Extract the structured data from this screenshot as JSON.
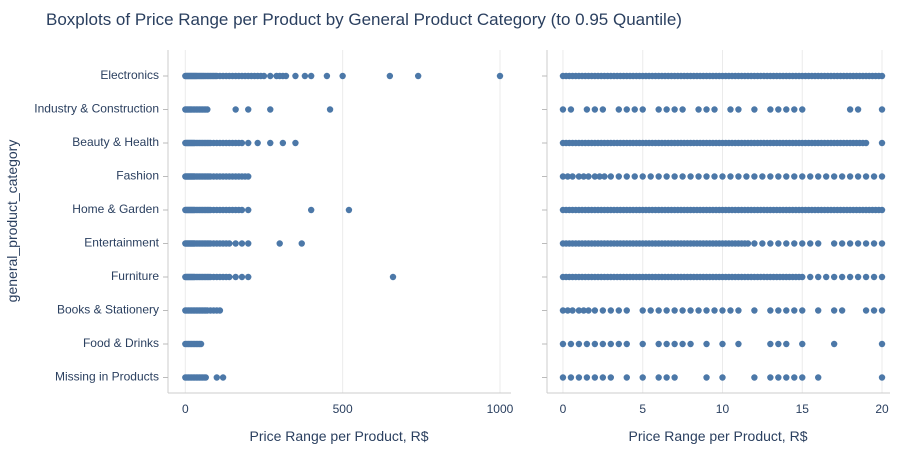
{
  "chart_data": {
    "type": "scatter",
    "title": "Boxplots of Price Range per Product by General Product Category (to 0.95 Quantile)",
    "ylabel": "general_product_category",
    "categories": [
      "Electronics",
      "Industry & Construction",
      "Beauty & Health",
      "Fashion",
      "Home & Garden",
      "Entertainment",
      "Furniture",
      "Books & Stationery",
      "Food & Drinks",
      "Missing in Products"
    ],
    "colors": {
      "marker": "#4c78a8",
      "text": "#2a3f5f",
      "grid": "#ebebeb"
    },
    "panels": [
      {
        "xlabel": "Price Range per Product, R$",
        "xlim": [
          -55,
          1035
        ],
        "xticks": [
          0,
          500,
          1000
        ],
        "series": [
          {
            "category": "Electronics",
            "x": [
              0,
              3,
              6,
              9,
              12,
              15,
              18,
              21,
              24,
              27,
              30,
              33,
              36,
              40,
              44,
              48,
              52,
              56,
              60,
              65,
              70,
              75,
              80,
              85,
              90,
              95,
              100,
              110,
              120,
              130,
              140,
              150,
              160,
              170,
              180,
              190,
              200,
              210,
              220,
              230,
              240,
              250,
              270,
              290,
              300,
              310,
              320,
              350,
              380,
              400,
              450,
              500,
              650,
              740,
              1000
            ]
          },
          {
            "category": "Industry & Construction",
            "x": [
              0,
              4,
              8,
              12,
              16,
              20,
              25,
              30,
              35,
              40,
              45,
              50,
              55,
              60,
              65,
              70,
              160,
              200,
              270,
              460
            ]
          },
          {
            "category": "Beauty & Health",
            "x": [
              0,
              3,
              6,
              9,
              12,
              15,
              18,
              21,
              24,
              27,
              30,
              35,
              40,
              45,
              50,
              55,
              60,
              65,
              70,
              75,
              80,
              90,
              100,
              110,
              120,
              130,
              140,
              150,
              160,
              170,
              180,
              200,
              230,
              270,
              310,
              350
            ]
          },
          {
            "category": "Fashion",
            "x": [
              0,
              3,
              6,
              9,
              12,
              15,
              18,
              21,
              24,
              27,
              30,
              35,
              40,
              45,
              50,
              55,
              60,
              65,
              70,
              75,
              80,
              90,
              100,
              110,
              120,
              130,
              140,
              150,
              160,
              170,
              180,
              190,
              200
            ]
          },
          {
            "category": "Home & Garden",
            "x": [
              0,
              3,
              6,
              9,
              12,
              15,
              18,
              21,
              24,
              27,
              30,
              35,
              40,
              45,
              50,
              55,
              60,
              65,
              70,
              75,
              80,
              90,
              100,
              110,
              120,
              130,
              140,
              150,
              160,
              170,
              180,
              200,
              400,
              520
            ]
          },
          {
            "category": "Entertainment",
            "x": [
              0,
              3,
              6,
              9,
              12,
              15,
              18,
              21,
              24,
              27,
              30,
              35,
              40,
              45,
              50,
              55,
              60,
              65,
              70,
              75,
              80,
              90,
              100,
              110,
              120,
              130,
              140,
              160,
              180,
              200,
              300,
              370
            ]
          },
          {
            "category": "Furniture",
            "x": [
              0,
              3,
              6,
              9,
              12,
              15,
              18,
              21,
              24,
              27,
              30,
              35,
              40,
              45,
              50,
              55,
              60,
              65,
              70,
              75,
              80,
              90,
              100,
              110,
              120,
              130,
              140,
              160,
              180,
              200,
              660
            ]
          },
          {
            "category": "Books & Stationery",
            "x": [
              0,
              5,
              10,
              15,
              20,
              25,
              30,
              35,
              40,
              45,
              50,
              55,
              60,
              65,
              70,
              80,
              90,
              100,
              110
            ]
          },
          {
            "category": "Food & Drinks",
            "x": [
              0,
              5,
              10,
              15,
              20,
              25,
              30,
              35,
              40,
              45,
              50
            ]
          },
          {
            "category": "Missing in Products",
            "x": [
              0,
              5,
              10,
              15,
              20,
              25,
              30,
              35,
              40,
              45,
              50,
              55,
              60,
              65,
              100,
              120
            ]
          }
        ]
      },
      {
        "xlabel": "Price Range per Product, R$",
        "xlim": [
          -1,
          20.5
        ],
        "xticks": [
          0,
          5,
          10,
          15,
          20
        ],
        "series": [
          {
            "category": "Electronics",
            "x": [
              0,
              0.2,
              0.4,
              0.6,
              0.8,
              1,
              1.2,
              1.4,
              1.6,
              1.8,
              2,
              2.2,
              2.4,
              2.6,
              2.8,
              3,
              3.2,
              3.4,
              3.6,
              3.8,
              4,
              4.2,
              4.4,
              4.6,
              4.8,
              5,
              5.2,
              5.4,
              5.6,
              5.8,
              6,
              6.2,
              6.4,
              6.6,
              6.8,
              7,
              7.2,
              7.4,
              7.6,
              7.8,
              8,
              8.2,
              8.4,
              8.6,
              8.8,
              9,
              9.2,
              9.4,
              9.6,
              9.8,
              10,
              10.2,
              10.4,
              10.6,
              10.8,
              11,
              11.2,
              11.4,
              11.6,
              11.8,
              12,
              12.2,
              12.4,
              12.6,
              12.8,
              13,
              13.2,
              13.4,
              13.6,
              13.8,
              14,
              14.2,
              14.4,
              14.6,
              14.8,
              15,
              15.2,
              15.4,
              15.6,
              15.8,
              16,
              16.2,
              16.4,
              16.6,
              16.8,
              17,
              17.2,
              17.4,
              17.6,
              17.8,
              18,
              18.2,
              18.4,
              18.6,
              18.8,
              19,
              19.2,
              19.4,
              19.6,
              19.8,
              20
            ]
          },
          {
            "category": "Industry & Construction",
            "x": [
              0,
              0.5,
              1.5,
              2,
              2.5,
              3.5,
              4,
              4.5,
              5,
              6,
              6.5,
              7,
              7.5,
              8.5,
              9,
              9.5,
              10.5,
              11,
              12,
              13,
              13.5,
              14,
              14.5,
              15,
              18,
              18.5,
              20
            ]
          },
          {
            "category": "Beauty & Health",
            "x": [
              0,
              0.2,
              0.4,
              0.6,
              0.8,
              1,
              1.2,
              1.4,
              1.6,
              1.8,
              2,
              2.2,
              2.4,
              2.6,
              2.8,
              3,
              3.2,
              3.4,
              3.6,
              3.8,
              4,
              4.2,
              4.4,
              4.6,
              4.8,
              5,
              5.2,
              5.4,
              5.6,
              5.8,
              6,
              6.2,
              6.4,
              6.6,
              6.8,
              7,
              7.2,
              7.4,
              7.6,
              7.8,
              8,
              8.2,
              8.4,
              8.6,
              8.8,
              9,
              9.2,
              9.4,
              9.6,
              9.8,
              10,
              10.2,
              10.4,
              10.6,
              10.8,
              11,
              11.2,
              11.4,
              11.6,
              11.8,
              12,
              12.2,
              12.4,
              12.6,
              12.8,
              13,
              13.2,
              13.4,
              13.6,
              13.8,
              14,
              14.2,
              14.4,
              14.6,
              14.8,
              15,
              15.2,
              15.4,
              15.6,
              15.8,
              16,
              16.2,
              16.4,
              16.6,
              16.8,
              17,
              17.2,
              17.4,
              17.6,
              17.8,
              18,
              18.2,
              18.4,
              18.6,
              18.8,
              19,
              20
            ]
          },
          {
            "category": "Fashion",
            "x": [
              0,
              0.3,
              0.6,
              1,
              1.3,
              1.6,
              2,
              2.3,
              2.6,
              3,
              3.5,
              4,
              4.5,
              5,
              5.5,
              6,
              6.5,
              7,
              7.5,
              8,
              8.5,
              9,
              9.5,
              10,
              10.5,
              11,
              11.5,
              12,
              12.5,
              13,
              13.5,
              14,
              14.5,
              15,
              15.5,
              16,
              16.5,
              17,
              17.5,
              18,
              18.5,
              19,
              19.5,
              20
            ]
          },
          {
            "category": "Home & Garden",
            "x": [
              0,
              0.2,
              0.4,
              0.6,
              0.8,
              1,
              1.2,
              1.4,
              1.6,
              1.8,
              2,
              2.2,
              2.4,
              2.6,
              2.8,
              3,
              3.2,
              3.4,
              3.6,
              3.8,
              4,
              4.2,
              4.4,
              4.6,
              4.8,
              5,
              5.2,
              5.4,
              5.6,
              5.8,
              6,
              6.2,
              6.4,
              6.6,
              6.8,
              7,
              7.2,
              7.4,
              7.6,
              7.8,
              8,
              8.2,
              8.4,
              8.6,
              8.8,
              9,
              9.2,
              9.4,
              9.6,
              9.8,
              10,
              10.2,
              10.4,
              10.6,
              10.8,
              11,
              11.2,
              11.4,
              11.6,
              11.8,
              12,
              12.2,
              12.4,
              12.6,
              12.8,
              13,
              13.2,
              13.4,
              13.6,
              13.8,
              14,
              14.2,
              14.4,
              14.6,
              14.8,
              15,
              15.2,
              15.4,
              15.6,
              15.8,
              16,
              16.2,
              16.4,
              16.6,
              16.8,
              17,
              17.2,
              17.4,
              17.6,
              17.8,
              18,
              18.2,
              18.4,
              18.6,
              18.8,
              19,
              19.2,
              19.4,
              19.6,
              19.8,
              20
            ]
          },
          {
            "category": "Entertainment",
            "x": [
              0,
              0.2,
              0.4,
              0.6,
              0.8,
              1,
              1.2,
              1.4,
              1.6,
              1.8,
              2,
              2.2,
              2.4,
              2.6,
              2.8,
              3,
              3.2,
              3.4,
              3.6,
              3.8,
              4,
              4.2,
              4.4,
              4.6,
              4.8,
              5,
              5.2,
              5.4,
              5.6,
              5.8,
              6,
              6.2,
              6.4,
              6.6,
              6.8,
              7,
              7.2,
              7.4,
              7.6,
              7.8,
              8,
              8.2,
              8.4,
              8.6,
              8.8,
              9,
              9.2,
              9.4,
              9.6,
              9.8,
              10,
              10.2,
              10.4,
              10.6,
              10.8,
              11,
              11.2,
              11.4,
              11.6,
              12,
              12.5,
              13,
              13.5,
              14,
              14.5,
              15,
              15.5,
              16,
              17,
              17.5,
              18,
              18.5,
              19,
              19.5,
              20
            ]
          },
          {
            "category": "Furniture",
            "x": [
              0,
              0.2,
              0.4,
              0.6,
              0.8,
              1,
              1.2,
              1.4,
              1.6,
              1.8,
              2,
              2.2,
              2.4,
              2.6,
              2.8,
              3,
              3.2,
              3.4,
              3.6,
              3.8,
              4,
              4.2,
              4.4,
              4.6,
              4.8,
              5,
              5.2,
              5.4,
              5.6,
              5.8,
              6,
              6.2,
              6.4,
              6.6,
              6.8,
              7,
              7.2,
              7.4,
              7.6,
              7.8,
              8,
              8.2,
              8.4,
              8.6,
              8.8,
              9,
              9.2,
              9.4,
              9.6,
              9.8,
              10,
              10.2,
              10.4,
              10.6,
              10.8,
              11,
              11.2,
              11.4,
              11.6,
              11.8,
              12,
              12.2,
              12.4,
              12.6,
              12.8,
              13,
              13.2,
              13.4,
              13.6,
              13.8,
              14,
              14.2,
              14.4,
              14.6,
              14.8,
              15,
              15.5,
              16,
              16.5,
              17,
              17.5,
              18,
              18.5,
              19,
              19.5,
              20
            ]
          },
          {
            "category": "Books & Stationery",
            "x": [
              0,
              0.3,
              0.6,
              1,
              1.3,
              1.6,
              2,
              2.5,
              3,
              3.5,
              4,
              5,
              5.5,
              6,
              6.5,
              7,
              7.5,
              8,
              8.5,
              9,
              9.5,
              10,
              10.5,
              11,
              12,
              13,
              13.5,
              14,
              14.5,
              15,
              16,
              17,
              17.5,
              19,
              19.5,
              20
            ]
          },
          {
            "category": "Food & Drinks",
            "x": [
              0,
              0.5,
              1,
              1.5,
              2,
              2.5,
              3,
              3.5,
              4,
              5,
              6,
              6.5,
              7,
              7.5,
              8,
              9,
              10,
              11,
              13,
              13.5,
              14,
              15,
              17,
              20
            ]
          },
          {
            "category": "Missing in Products",
            "x": [
              0,
              0.5,
              1,
              1.5,
              2,
              2.5,
              3,
              4,
              5,
              6,
              6.5,
              7,
              9,
              10,
              12,
              13,
              13.5,
              14,
              14.5,
              15,
              16,
              20
            ]
          }
        ]
      }
    ]
  }
}
